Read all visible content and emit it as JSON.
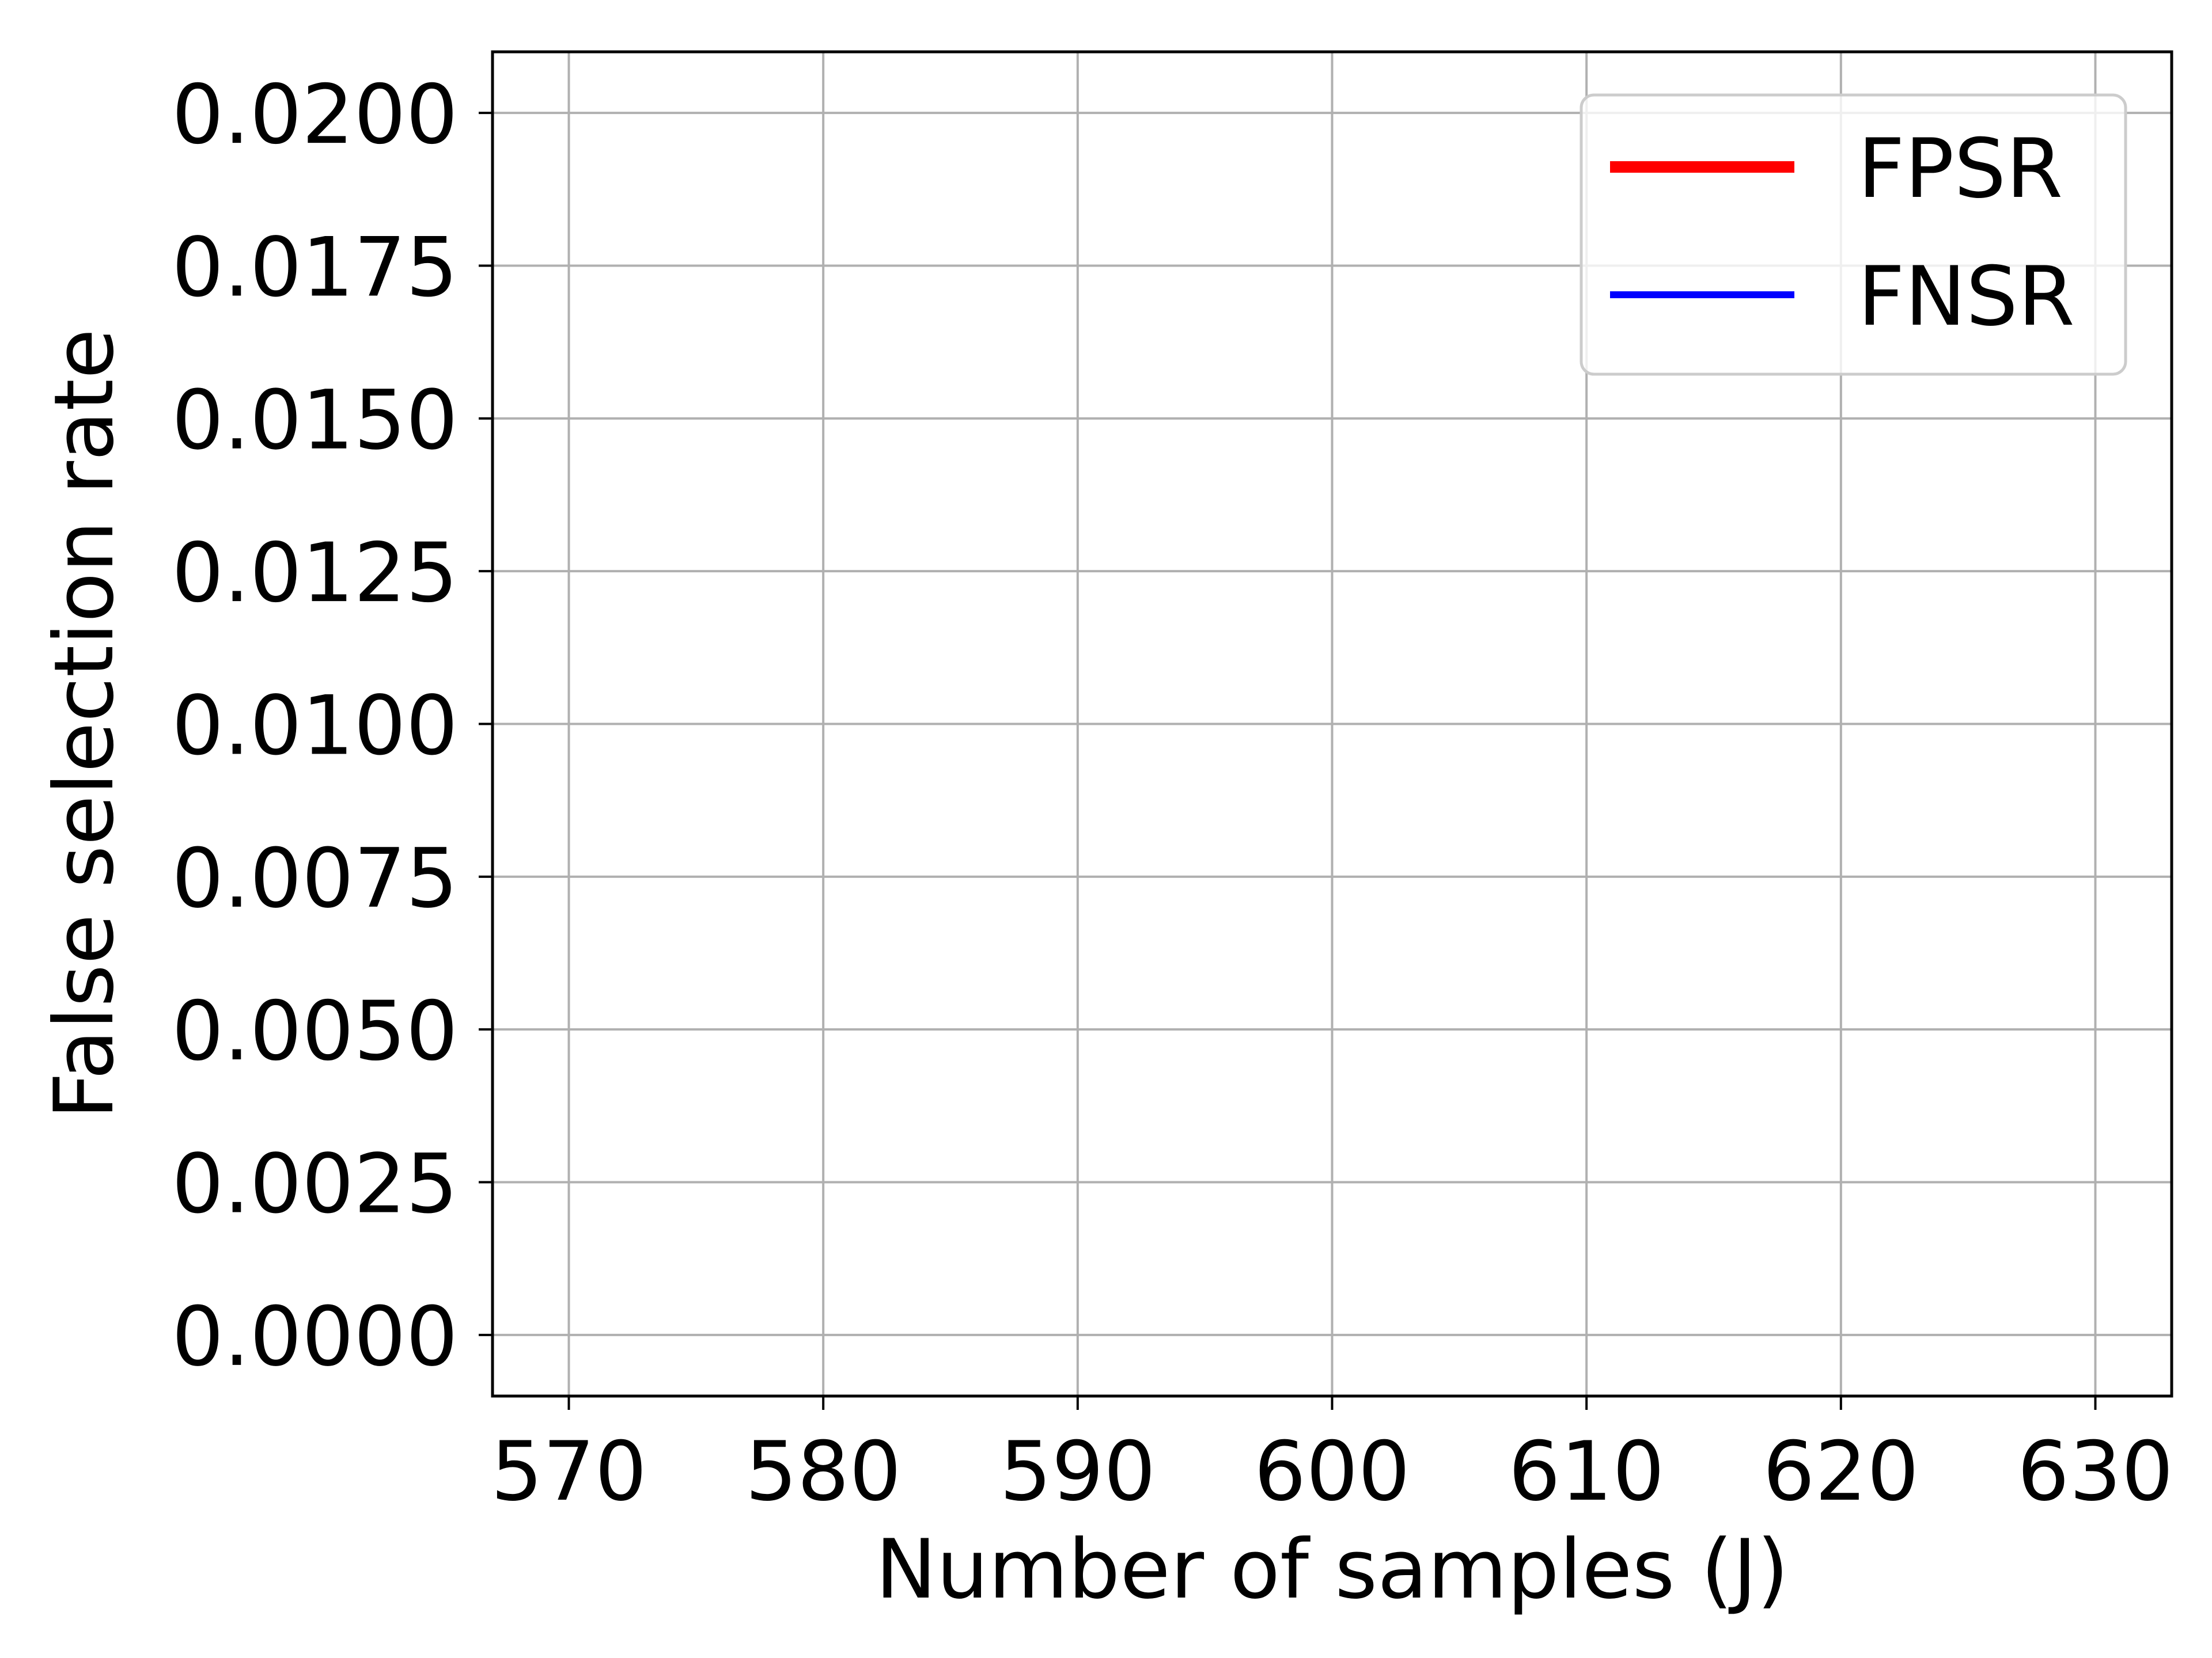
{
  "chart_data": {
    "type": "line",
    "title": "",
    "xlabel": "Number of samples (J)",
    "ylabel": "False selection rate",
    "xlim": [
      567,
      633
    ],
    "ylim": [
      -0.001,
      0.021
    ],
    "xticks": [
      570,
      580,
      590,
      600,
      610,
      620,
      630
    ],
    "xtick_labels": [
      "570",
      "580",
      "590",
      "600",
      "610",
      "620",
      "630"
    ],
    "yticks": [
      0.0,
      0.0025,
      0.005,
      0.0075,
      0.01,
      0.0125,
      0.015,
      0.0175,
      0.02
    ],
    "ytick_labels": [
      "0.0000",
      "0.0025",
      "0.0050",
      "0.0075",
      "0.0100",
      "0.0125",
      "0.0150",
      "0.0175",
      "0.0200"
    ],
    "grid": true,
    "legend_position": "top-right",
    "series": [
      {
        "name": "FPSR",
        "color": "#ff0000",
        "linewidth": "thick",
        "x": [],
        "y": []
      },
      {
        "name": "FNSR",
        "color": "#0000ff",
        "linewidth": "normal",
        "x": [],
        "y": []
      }
    ]
  }
}
